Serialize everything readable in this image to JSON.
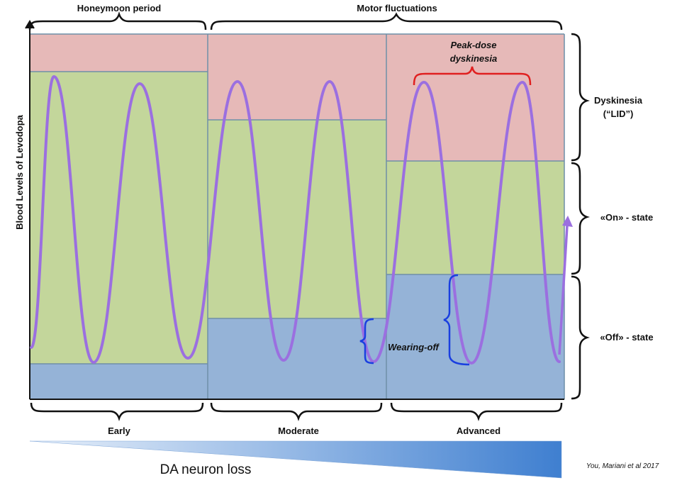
{
  "top_labels": {
    "honeymoon": "Honeymoon period",
    "motor": "Motor fluctuations"
  },
  "y_axis_label": "Blood Levels of Levodopa",
  "stage_labels": [
    "Early",
    "Moderate",
    "Advanced"
  ],
  "right_labels": {
    "dyskinesia_line1": "Dyskinesia",
    "dyskinesia_line2": "(“LID”)",
    "on_state": "«On» - state",
    "off_state": "«Off» - state"
  },
  "annotations": {
    "peak_dose_line1": "Peak-dose",
    "peak_dose_line2": "dyskinesia",
    "wearing_off": "Wearing-off"
  },
  "neuron_loss_label": "DA neuron loss",
  "citation": "You, Mariani et al 2017",
  "colors": {
    "dyskinesia_zone": "#e6b9b8",
    "on_zone": "#c3d69b",
    "off_zone": "#95b3d7",
    "curve": "#9b6fe0",
    "peak_brace": "#e02020",
    "wearing_brace": "#1a3fe0",
    "wedge": "#4a86d4"
  }
}
